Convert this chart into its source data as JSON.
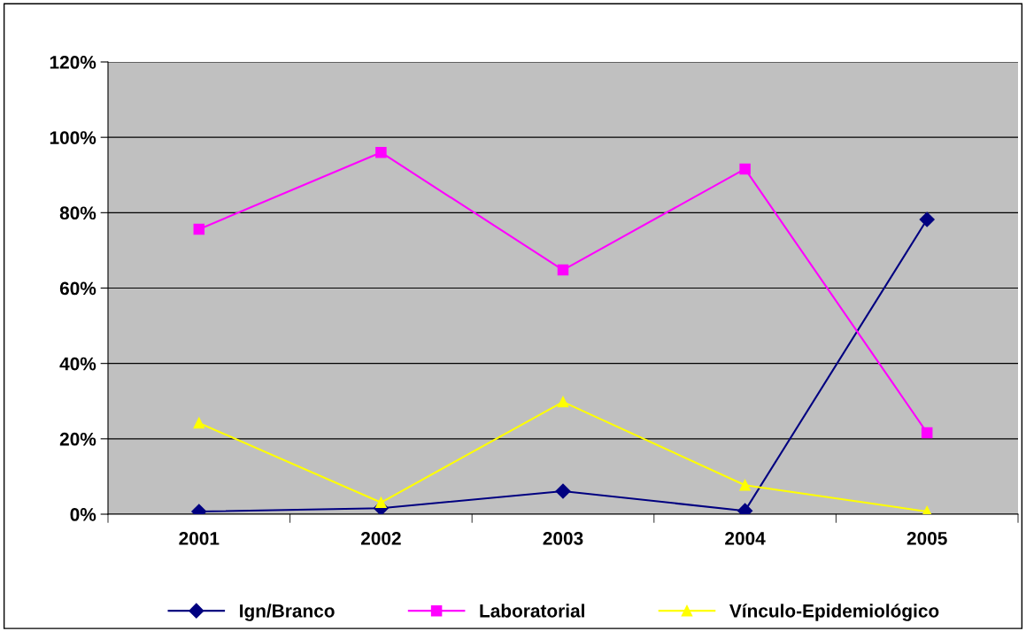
{
  "chart_data": {
    "type": "line",
    "categories": [
      "2001",
      "2002",
      "2003",
      "2004",
      "2005"
    ],
    "series": [
      {
        "name": "Ign/Branco",
        "color": "#000080",
        "marker": "diamond",
        "values": [
          0.7,
          1.6,
          6.1,
          0.9,
          78.2
        ]
      },
      {
        "name": "Laboratorial",
        "color": "#ff00ff",
        "marker": "square",
        "values": [
          75.6,
          96.0,
          64.8,
          91.6,
          21.6
        ]
      },
      {
        "name": "Vínculo-Epidemiológico",
        "color": "#ffff00",
        "marker": "triangle",
        "values": [
          24.2,
          3.1,
          29.8,
          7.7,
          0.7
        ]
      }
    ],
    "ylim": [
      0,
      120
    ],
    "yticks": [
      {
        "value": 0,
        "label": "0%"
      },
      {
        "value": 20,
        "label": "20%"
      },
      {
        "value": 40,
        "label": "40%"
      },
      {
        "value": 60,
        "label": "60%"
      },
      {
        "value": 80,
        "label": "80%"
      },
      {
        "value": 100,
        "label": "100%"
      },
      {
        "value": 120,
        "label": "120%"
      }
    ],
    "grid": "y",
    "legend": "bottom",
    "line_style": "solid"
  }
}
